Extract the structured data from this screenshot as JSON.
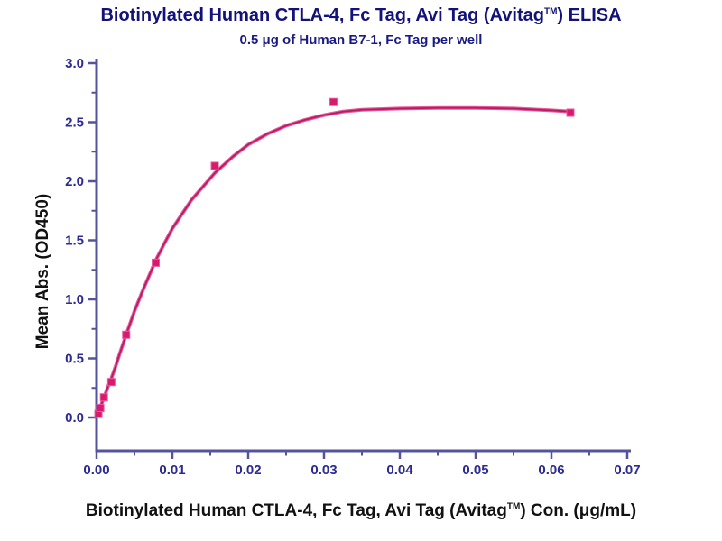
{
  "chart": {
    "title": {
      "pre": "Biotinylated Human CTLA-4, Fc Tag, Avi Tag (Avitag",
      "tm": "TM",
      "post": ") ELISA"
    },
    "subtitle": "0.5 μg of Human B7-1, Fc Tag per well",
    "ylabel": "Mean Abs. (OD450)",
    "xlabel": {
      "pre": "Biotinylated Human CTLA-4, Fc Tag, Avi Tag (Avitag",
      "tm": "TM",
      "post": ") Con. (μg/mL)"
    },
    "colors": {
      "title": "#12127a",
      "subtitle": "#1a1a84",
      "axis": "#54549e",
      "tick_label": "#2b2b93",
      "curve_outer": "#e858a0",
      "curve_core": "#b51e5e",
      "marker": "#d9196b",
      "text": "#111111"
    }
  },
  "chart_data": {
    "type": "scatter",
    "title": "Biotinylated Human CTLA-4, Fc Tag, Avi Tag (Avitag TM) ELISA",
    "subtitle": "0.5 μg of Human B7-1, Fc Tag per well",
    "xlabel": "Biotinylated Human CTLA-4, Fc Tag, Avi Tag (Avitag TM) Con. (μg/mL)",
    "ylabel": "Mean Abs. (OD450)",
    "xlim": [
      0,
      0.07
    ],
    "ylim": [
      0,
      3.0
    ],
    "xticks": [
      0,
      0.01,
      0.02,
      0.03,
      0.04,
      0.05,
      0.06,
      0.07
    ],
    "yticks": [
      0,
      0.5,
      1.0,
      1.5,
      2.0,
      2.5,
      3.0
    ],
    "x_minor_step": 0.005,
    "y_minor_step": 0.25,
    "grid": false,
    "legend": "none",
    "marker": "square",
    "points": {
      "x": [
        0.000244,
        0.000488,
        0.000977,
        0.00195,
        0.0039,
        0.0078,
        0.0156,
        0.03125,
        0.0625
      ],
      "y": [
        0.03,
        0.08,
        0.17,
        0.3,
        0.7,
        1.31,
        2.13,
        2.67,
        2.58
      ]
    },
    "fit_curve": {
      "x": [
        0.0003,
        0.0005,
        0.001,
        0.0015,
        0.002,
        0.0025,
        0.003,
        0.0039,
        0.005,
        0.006,
        0.0078,
        0.009,
        0.01,
        0.0125,
        0.0156,
        0.018,
        0.02,
        0.0225,
        0.025,
        0.0275,
        0.03,
        0.0325,
        0.035,
        0.04,
        0.045,
        0.05,
        0.055,
        0.06,
        0.0625
      ],
      "y": [
        0.05,
        0.09,
        0.17,
        0.26,
        0.34,
        0.43,
        0.53,
        0.7,
        0.9,
        1.06,
        1.33,
        1.48,
        1.6,
        1.84,
        2.07,
        2.21,
        2.31,
        2.4,
        2.47,
        2.52,
        2.56,
        2.59,
        2.605,
        2.615,
        2.62,
        2.62,
        2.615,
        2.6,
        2.59
      ]
    }
  }
}
